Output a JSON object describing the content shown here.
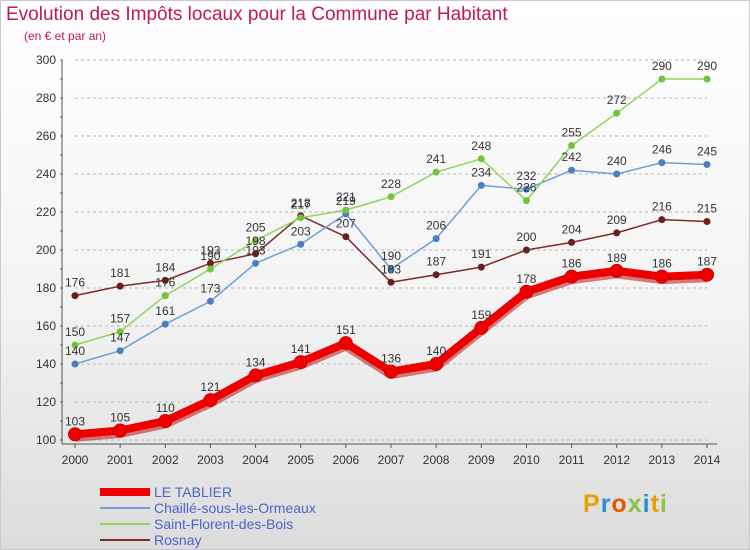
{
  "title": "Evolution des Impôts locaux pour la Commune par Habitant",
  "subtitle": "(en € et par an)",
  "logo_text": "Proxiti",
  "colors": {
    "title": "#c2185b",
    "legend_text": "#4a63c8",
    "grid": "#b8b8b8"
  },
  "chart_data": {
    "type": "line",
    "title": "Evolution des Impôts locaux pour la Commune par Habitant",
    "subtitle": "(en € et par an)",
    "xlabel": "",
    "ylabel": "",
    "x": [
      "2000",
      "2001",
      "2002",
      "2003",
      "2004",
      "2005",
      "2006",
      "2007",
      "2008",
      "2009",
      "2010",
      "2011",
      "2012",
      "2013",
      "2014"
    ],
    "ylim": [
      100,
      300
    ],
    "yticks": [
      100,
      120,
      140,
      160,
      180,
      200,
      220,
      240,
      260,
      280,
      300
    ],
    "grid": "horizontal dashed",
    "legend_position": "bottom-left",
    "series": [
      {
        "name": "LE TABLIER",
        "color": "#ee0000",
        "marker": "#ee0000",
        "values": [
          103,
          105,
          110,
          121,
          134,
          141,
          151,
          136,
          140,
          159,
          178,
          186,
          189,
          186,
          187
        ]
      },
      {
        "name": "Chaillé-sous-les-Ormeaux",
        "color": "#6b9fd8",
        "marker": "#4a7fc0",
        "values": [
          140,
          147,
          161,
          173,
          193,
          203,
          219,
          190,
          206,
          234,
          232,
          242,
          240,
          246,
          245
        ]
      },
      {
        "name": "Saint-Florent-des-Bois",
        "color": "#8ed65a",
        "marker": "#74c33a",
        "values": [
          150,
          157,
          176,
          190,
          205,
          217,
          221,
          228,
          241,
          248,
          226,
          255,
          272,
          290,
          290
        ]
      },
      {
        "name": "Rosnay",
        "color": "#7d2a2a",
        "marker": "#6a1f1f",
        "values": [
          176,
          181,
          184,
          193,
          198,
          218,
          207,
          183,
          187,
          191,
          200,
          204,
          209,
          216,
          215
        ]
      }
    ]
  }
}
